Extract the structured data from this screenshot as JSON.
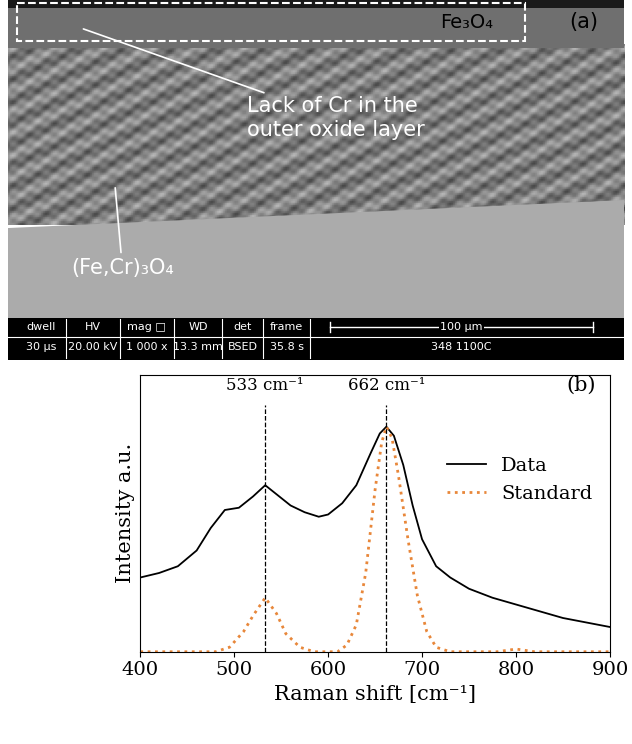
{
  "chart_data": [
    {
      "type": "image",
      "panel_label": "(a)",
      "annotations": [
        {
          "text": "Fe₃O₄"
        },
        {
          "text": "Lack of Cr in the\nouter oxide layer"
        },
        {
          "text": "(Fe,Cr)₃O₄"
        }
      ],
      "info_bar": {
        "headers": [
          "dwell",
          "HV",
          "mag □",
          "WD",
          "det",
          "frame"
        ],
        "values": [
          "30 µs",
          "20.00 kV",
          "1 000 x",
          "13.3 mm",
          "BSED",
          "35.8 s"
        ],
        "scale_bar": "100 µm",
        "sample": "348 1100C"
      }
    },
    {
      "type": "line",
      "panel_label": "(b)",
      "x_label": "Raman shift [cm⁻¹]",
      "y_label": "Intensity a.u.",
      "xlim": [
        400,
        900
      ],
      "xticks": [
        400,
        500,
        600,
        700,
        800,
        900
      ],
      "ylim": [
        0,
        1.23
      ],
      "yticks": [],
      "tick_labels": "x",
      "legend": "center right",
      "markers": [
        {
          "x": 533,
          "label": "533 cm⁻¹"
        },
        {
          "x": 662,
          "label": "662 cm⁻¹"
        }
      ],
      "series": [
        {
          "name": "Data",
          "color": "#000000",
          "line_style": "solid",
          "x": [
            400,
            420,
            440,
            460,
            475,
            490,
            505,
            520,
            533,
            545,
            560,
            575,
            590,
            600,
            615,
            630,
            645,
            655,
            662,
            670,
            680,
            690,
            700,
            715,
            730,
            750,
            775,
            800,
            825,
            850,
            875,
            900
          ],
          "values": [
            0.33,
            0.35,
            0.38,
            0.45,
            0.55,
            0.63,
            0.64,
            0.69,
            0.74,
            0.7,
            0.65,
            0.62,
            0.6,
            0.61,
            0.66,
            0.74,
            0.88,
            0.97,
            1.0,
            0.96,
            0.83,
            0.65,
            0.5,
            0.38,
            0.33,
            0.28,
            0.24,
            0.21,
            0.18,
            0.15,
            0.13,
            0.11
          ]
        },
        {
          "name": "Standard",
          "color": "#e8873a",
          "line_style": "dotted",
          "x": [
            400,
            480,
            495,
            510,
            520,
            533,
            545,
            555,
            570,
            585,
            610,
            620,
            630,
            640,
            650,
            657,
            662,
            668,
            675,
            685,
            695,
            705,
            715,
            730,
            780,
            800,
            820,
            900
          ],
          "values": [
            0,
            0,
            0.02,
            0.09,
            0.16,
            0.24,
            0.17,
            0.08,
            0.02,
            0,
            0,
            0.03,
            0.12,
            0.35,
            0.72,
            0.93,
            1.0,
            0.95,
            0.78,
            0.5,
            0.25,
            0.09,
            0.02,
            0,
            0,
            0.012,
            0,
            0
          ]
        }
      ]
    }
  ]
}
